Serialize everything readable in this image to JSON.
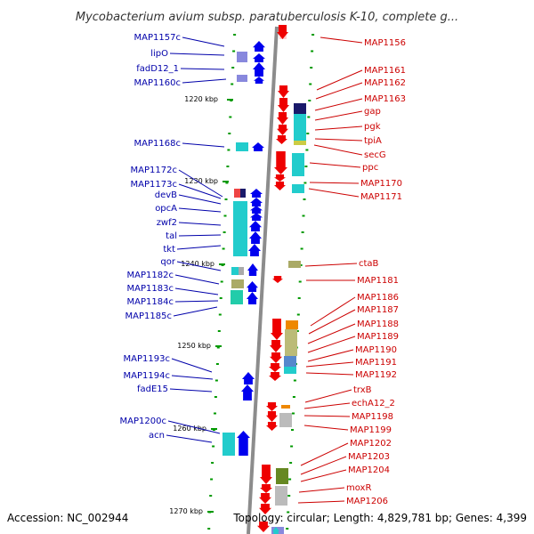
{
  "title": "Mycobacterium avium subsp. paratuberculosis K-10, complete g...",
  "footer": {
    "accession": "Accession: NC_002944",
    "topology": "Topology: circular; Length: 4,829,781 bp; Genes: 4,399"
  },
  "ruler": {
    "ticks": [
      {
        "kbp": 1220,
        "label": "1220 kbp"
      },
      {
        "kbp": 1230,
        "label": "1230 kbp"
      },
      {
        "kbp": 1240,
        "label": "1240 kbp"
      },
      {
        "kbp": 1250,
        "label": "1250 kbp"
      },
      {
        "kbp": 1260,
        "label": "1260 kbp"
      },
      {
        "kbp": 1270,
        "label": "1270 kbp"
      }
    ]
  },
  "colors": {
    "backbone": "#8c8c8c",
    "reverse_strand": "#0000ee",
    "forward_strand": "#ee0000",
    "reverse_label": "#0000aa",
    "forward_label": "#cc0000",
    "tick": "#009900",
    "cyan": "#22cccc",
    "olive": "#999955",
    "orange": "#ee8800"
  },
  "reverse_genes": [
    "MAP1157c",
    "lipO",
    "fadD12_1",
    "MAP1160c",
    "MAP1168c",
    "MAP1172c",
    "MAP1173c",
    "devB",
    "opcA",
    "zwf2",
    "tal",
    "tkt",
    "qor",
    "MAP1182c",
    "MAP1183c",
    "MAP1184c",
    "MAP1185c",
    "MAP1193c",
    "MAP1194c",
    "fadE15",
    "MAP1200c",
    "acn"
  ],
  "forward_genes": [
    "MAP1156",
    "MAP1161",
    "MAP1162",
    "MAP1163",
    "gap",
    "pgk",
    "tpiA",
    "secG",
    "ppc",
    "MAP1170",
    "MAP1171",
    "ctaB",
    "MAP1181",
    "MAP1186",
    "MAP1187",
    "MAP1188",
    "MAP1189",
    "MAP1190",
    "MAP1191",
    "MAP1192",
    "trxB",
    "echA12_2",
    "MAP1198",
    "MAP1199",
    "MAP1202",
    "MAP1203",
    "MAP1204",
    "moxR",
    "MAP1206"
  ]
}
